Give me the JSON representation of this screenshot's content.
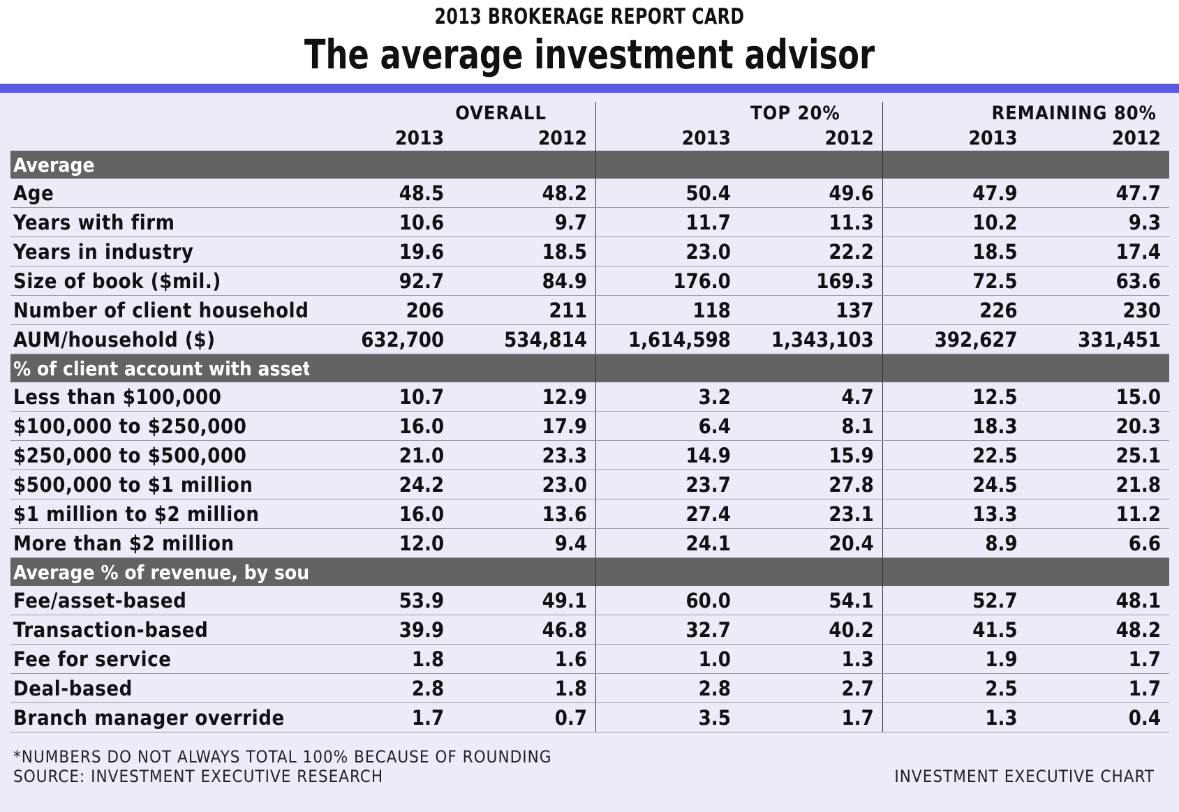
{
  "kicker": "2013 BROKERAGE REPORT CARD",
  "title": "The average investment advisor",
  "chart_data": {
    "type": "table",
    "column_groups": [
      "OVERALL",
      "TOP 20%",
      "REMAINING 80%"
    ],
    "years": [
      "2013",
      "2012"
    ],
    "sections": [
      {
        "name": "Average",
        "rows": [
          {
            "label": "Age",
            "values": [
              "48.5",
              "48.2",
              "50.4",
              "49.6",
              "47.9",
              "47.7"
            ]
          },
          {
            "label": "Years with firm",
            "values": [
              "10.6",
              "9.7",
              "11.7",
              "11.3",
              "10.2",
              "9.3"
            ]
          },
          {
            "label": "Years in industry",
            "values": [
              "19.6",
              "18.5",
              "23.0",
              "22.2",
              "18.5",
              "17.4"
            ]
          },
          {
            "label": "Size of book ($mil.)",
            "values": [
              "92.7",
              "84.9",
              "176.0",
              "169.3",
              "72.5",
              "63.6"
            ]
          },
          {
            "label": "Number of client households",
            "values": [
              "206",
              "211",
              "118",
              "137",
              "226",
              "230"
            ]
          },
          {
            "label": "AUM/household ($)",
            "values": [
              "632,700",
              "534,814",
              "1,614,598",
              "1,343,103",
              "392,627",
              "331,451"
            ]
          }
        ]
      },
      {
        "name": "% of client account with assets of*",
        "rows": [
          {
            "label": "Less than $100,000",
            "values": [
              "10.7",
              "12.9",
              "3.2",
              "4.7",
              "12.5",
              "15.0"
            ]
          },
          {
            "label": "$100,000 to $250,000",
            "values": [
              "16.0",
              "17.9",
              "6.4",
              "8.1",
              "18.3",
              "20.3"
            ]
          },
          {
            "label": "$250,000 to $500,000",
            "values": [
              "21.0",
              "23.3",
              "14.9",
              "15.9",
              "22.5",
              "25.1"
            ]
          },
          {
            "label": "$500,000 to $1 million",
            "values": [
              "24.2",
              "23.0",
              "23.7",
              "27.8",
              "24.5",
              "21.8"
            ]
          },
          {
            "label": "$1 million to $2 million",
            "values": [
              "16.0",
              "13.6",
              "27.4",
              "23.1",
              "13.3",
              "11.2"
            ]
          },
          {
            "label": "More than $2 million",
            "values": [
              "12.0",
              "9.4",
              "24.1",
              "20.4",
              "8.9",
              "6.6"
            ]
          }
        ]
      },
      {
        "name": "Average % of revenue, by source*",
        "rows": [
          {
            "label": "Fee/asset-based",
            "values": [
              "53.9",
              "49.1",
              "60.0",
              "54.1",
              "52.7",
              "48.1"
            ]
          },
          {
            "label": "Transaction-based",
            "values": [
              "39.9",
              "46.8",
              "32.7",
              "40.2",
              "41.5",
              "48.2"
            ]
          },
          {
            "label": "Fee for service",
            "values": [
              "1.8",
              "1.6",
              "1.0",
              "1.3",
              "1.9",
              "1.7"
            ]
          },
          {
            "label": "Deal-based",
            "values": [
              "2.8",
              "1.8",
              "2.8",
              "2.7",
              "2.5",
              "1.7"
            ]
          },
          {
            "label": "Branch manager override",
            "values": [
              "1.7",
              "0.7",
              "3.5",
              "1.7",
              "1.3",
              "0.4"
            ]
          }
        ]
      }
    ]
  },
  "footnote_rounding": "*NUMBERS DO NOT ALWAYS TOTAL 100% BECAUSE OF ROUNDING",
  "source": "SOURCE: INVESTMENT EXECUTIVE RESEARCH",
  "credit": "INVESTMENT EXECUTIVE CHART",
  "colors": {
    "accent_rule": "#5858e8",
    "section_band": "#636363",
    "background": "#ececf9"
  }
}
